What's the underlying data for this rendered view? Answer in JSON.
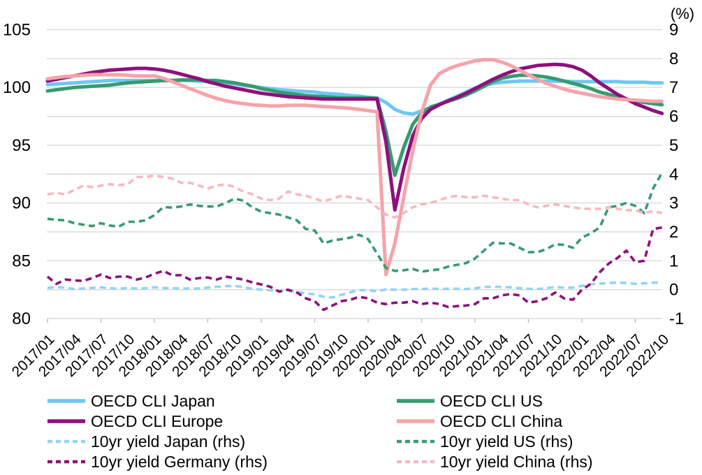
{
  "chart_data": {
    "type": "line",
    "title": "",
    "left_axis": {
      "range": [
        80,
        105
      ],
      "ticks": [
        105,
        100,
        95,
        90,
        85,
        80
      ],
      "label": ""
    },
    "right_axis": {
      "range": [
        -1,
        9
      ],
      "ticks": [
        9,
        8,
        7,
        6,
        5,
        4,
        3,
        2,
        1,
        0,
        -1
      ],
      "label": "(%)"
    },
    "grid": "horizontal",
    "legend_position": "bottom-two-columns",
    "x_label_every": 3,
    "x_tick_mark_every": 6,
    "x": [
      "2017/01",
      "2017/02",
      "2017/03",
      "2017/04",
      "2017/05",
      "2017/06",
      "2017/07",
      "2017/08",
      "2017/09",
      "2017/10",
      "2017/11",
      "2017/12",
      "2018/01",
      "2018/02",
      "2018/03",
      "2018/04",
      "2018/05",
      "2018/06",
      "2018/07",
      "2018/08",
      "2018/09",
      "2018/10",
      "2018/11",
      "2018/12",
      "2019/01",
      "2019/02",
      "2019/03",
      "2019/04",
      "2019/05",
      "2019/06",
      "2019/07",
      "2019/08",
      "2019/09",
      "2019/10",
      "2019/11",
      "2019/12",
      "2020/01",
      "2020/02",
      "2020/03",
      "2020/04",
      "2020/05",
      "2020/06",
      "2020/07",
      "2020/08",
      "2020/09",
      "2020/10",
      "2020/11",
      "2020/12",
      "2021/01",
      "2021/02",
      "2021/03",
      "2021/04",
      "2021/05",
      "2021/06",
      "2021/07",
      "2021/08",
      "2021/09",
      "2021/10",
      "2021/11",
      "2021/12",
      "2022/01",
      "2022/02",
      "2022/03",
      "2022/04",
      "2022/05",
      "2022/06",
      "2022/07",
      "2022/08",
      "2022/09",
      "2022/10"
    ],
    "series": [
      {
        "name": "OECD CLI Japan",
        "axis": "left",
        "dashed": false,
        "color": "#6FC7F0",
        "values": [
          100.25,
          100.3,
          100.35,
          100.4,
          100.45,
          100.5,
          100.55,
          100.6,
          100.6,
          100.6,
          100.6,
          100.6,
          100.6,
          100.6,
          100.6,
          100.6,
          100.6,
          100.55,
          100.5,
          100.45,
          100.4,
          100.3,
          100.2,
          100.1,
          100.0,
          99.9,
          99.8,
          99.75,
          99.7,
          99.65,
          99.6,
          99.5,
          99.45,
          99.4,
          99.3,
          99.25,
          99.15,
          99.1,
          98.7,
          98.1,
          97.8,
          97.7,
          97.95,
          98.25,
          98.55,
          98.9,
          99.25,
          99.6,
          99.95,
          100.2,
          100.35,
          100.45,
          100.5,
          100.55,
          100.55,
          100.55,
          100.55,
          100.55,
          100.55,
          100.5,
          100.5,
          100.5,
          100.5,
          100.5,
          100.5,
          100.45,
          100.45,
          100.45,
          100.4,
          100.4
        ]
      },
      {
        "name": "OECD CLI US",
        "axis": "left",
        "dashed": false,
        "color": "#369B71",
        "values": [
          99.7,
          99.8,
          99.9,
          100.0,
          100.05,
          100.1,
          100.15,
          100.2,
          100.3,
          100.4,
          100.45,
          100.5,
          100.55,
          100.6,
          100.6,
          100.65,
          100.65,
          100.65,
          100.6,
          100.6,
          100.5,
          100.4,
          100.25,
          100.1,
          99.9,
          99.75,
          99.6,
          99.5,
          99.4,
          99.3,
          99.25,
          99.2,
          99.15,
          99.1,
          99.1,
          99.1,
          99.1,
          99.05,
          96.2,
          92.4,
          94.8,
          96.8,
          97.8,
          98.3,
          98.55,
          98.8,
          99.05,
          99.35,
          99.7,
          100.1,
          100.5,
          100.8,
          100.95,
          101.05,
          101.05,
          101.0,
          100.9,
          100.75,
          100.55,
          100.35,
          100.15,
          99.9,
          99.6,
          99.4,
          99.2,
          99.0,
          98.8,
          98.7,
          98.6,
          98.5
        ]
      },
      {
        "name": "OECD CLI Europe",
        "axis": "left",
        "dashed": false,
        "color": "#8E107C",
        "values": [
          100.55,
          100.7,
          100.85,
          101.0,
          101.15,
          101.3,
          101.4,
          101.5,
          101.55,
          101.6,
          101.65,
          101.65,
          101.6,
          101.5,
          101.35,
          101.15,
          100.95,
          100.75,
          100.5,
          100.3,
          100.1,
          99.95,
          99.8,
          99.65,
          99.5,
          99.4,
          99.3,
          99.2,
          99.15,
          99.1,
          99.05,
          99.0,
          99.0,
          99.0,
          99.0,
          99.0,
          99.0,
          99.0,
          95.3,
          89.4,
          93.0,
          95.8,
          97.3,
          98.1,
          98.5,
          98.85,
          99.15,
          99.5,
          99.9,
          100.3,
          100.7,
          101.05,
          101.35,
          101.6,
          101.75,
          101.9,
          101.95,
          102.0,
          101.95,
          101.8,
          101.5,
          101.0,
          100.4,
          99.9,
          99.4,
          99.0,
          98.6,
          98.3,
          98.0,
          97.75
        ]
      },
      {
        "name": "OECD CLI China",
        "axis": "left",
        "dashed": false,
        "color": "#F5A3A9",
        "values": [
          100.75,
          100.85,
          100.95,
          101.0,
          101.05,
          101.1,
          101.1,
          101.1,
          101.1,
          101.05,
          101.0,
          101.0,
          101.0,
          100.8,
          100.5,
          100.2,
          99.9,
          99.6,
          99.3,
          99.05,
          98.85,
          98.7,
          98.6,
          98.5,
          98.45,
          98.4,
          98.4,
          98.45,
          98.45,
          98.45,
          98.4,
          98.35,
          98.3,
          98.25,
          98.2,
          98.1,
          98.0,
          97.9,
          83.8,
          86.5,
          90.5,
          94.5,
          97.8,
          100.2,
          101.2,
          101.6,
          101.9,
          102.1,
          102.3,
          102.4,
          102.4,
          102.2,
          101.9,
          101.5,
          101.1,
          100.7,
          100.35,
          100.1,
          99.85,
          99.65,
          99.5,
          99.35,
          99.2,
          99.1,
          99.0,
          98.95,
          98.9,
          98.85,
          98.8,
          98.8
        ]
      },
      {
        "name": "10yr yield Japan (rhs)",
        "axis": "right",
        "dashed": true,
        "color": "#92D4F4",
        "values": [
          0.06,
          0.08,
          0.07,
          0.02,
          0.04,
          0.06,
          0.08,
          0.05,
          0.03,
          0.06,
          0.04,
          0.05,
          0.08,
          0.06,
          0.05,
          0.04,
          0.04,
          0.04,
          0.07,
          0.1,
          0.12,
          0.13,
          0.09,
          0.03,
          0.0,
          -0.02,
          -0.05,
          -0.04,
          -0.07,
          -0.13,
          -0.16,
          -0.25,
          -0.27,
          -0.18,
          -0.09,
          -0.02,
          -0.02,
          -0.06,
          0.01,
          0.0,
          0.0,
          0.02,
          0.02,
          0.04,
          0.02,
          0.03,
          0.03,
          0.02,
          0.05,
          0.09,
          0.1,
          0.09,
          0.08,
          0.05,
          0.03,
          0.02,
          0.05,
          0.09,
          0.07,
          0.07,
          0.13,
          0.19,
          0.21,
          0.23,
          0.24,
          0.23,
          0.2,
          0.22,
          0.24,
          0.25
        ]
      },
      {
        "name": "10yr yield US (rhs)",
        "axis": "right",
        "dashed": true,
        "color": "#369B71",
        "values": [
          2.45,
          2.42,
          2.4,
          2.3,
          2.25,
          2.2,
          2.3,
          2.22,
          2.18,
          2.35,
          2.35,
          2.4,
          2.58,
          2.86,
          2.84,
          2.88,
          2.95,
          2.9,
          2.88,
          2.88,
          3.0,
          3.15,
          3.08,
          2.85,
          2.7,
          2.65,
          2.6,
          2.5,
          2.4,
          2.1,
          2.05,
          1.6,
          1.7,
          1.75,
          1.8,
          1.9,
          1.75,
          1.25,
          0.75,
          0.65,
          0.67,
          0.72,
          0.62,
          0.67,
          0.7,
          0.8,
          0.86,
          0.92,
          1.08,
          1.35,
          1.62,
          1.6,
          1.6,
          1.45,
          1.3,
          1.3,
          1.4,
          1.57,
          1.55,
          1.45,
          1.8,
          1.95,
          2.15,
          2.85,
          2.9,
          3.0,
          2.9,
          2.65,
          3.5,
          4.05
        ]
      },
      {
        "name": "10yr yield Germany (rhs)",
        "axis": "right",
        "dashed": true,
        "color": "#8E107C",
        "values": [
          0.45,
          0.2,
          0.35,
          0.32,
          0.3,
          0.4,
          0.52,
          0.4,
          0.45,
          0.45,
          0.35,
          0.42,
          0.55,
          0.65,
          0.5,
          0.5,
          0.35,
          0.4,
          0.42,
          0.35,
          0.45,
          0.4,
          0.35,
          0.25,
          0.18,
          0.1,
          -0.07,
          0.0,
          -0.1,
          -0.3,
          -0.4,
          -0.7,
          -0.55,
          -0.4,
          -0.35,
          -0.25,
          -0.3,
          -0.45,
          -0.5,
          -0.45,
          -0.45,
          -0.4,
          -0.5,
          -0.45,
          -0.5,
          -0.6,
          -0.57,
          -0.55,
          -0.5,
          -0.3,
          -0.3,
          -0.2,
          -0.15,
          -0.2,
          -0.45,
          -0.4,
          -0.3,
          -0.1,
          -0.3,
          -0.35,
          0.0,
          0.2,
          0.6,
          0.9,
          1.1,
          1.35,
          0.95,
          1.0,
          2.1,
          2.15
        ]
      },
      {
        "name": "10yr yield China (rhs)",
        "axis": "right",
        "dashed": true,
        "color": "#F8B8BE",
        "values": [
          3.3,
          3.35,
          3.3,
          3.45,
          3.6,
          3.55,
          3.6,
          3.65,
          3.62,
          3.65,
          3.9,
          3.9,
          3.95,
          3.9,
          3.85,
          3.7,
          3.7,
          3.6,
          3.5,
          3.6,
          3.65,
          3.55,
          3.4,
          3.3,
          3.15,
          3.1,
          3.15,
          3.4,
          3.3,
          3.25,
          3.15,
          3.05,
          3.15,
          3.25,
          3.2,
          3.15,
          3.1,
          2.85,
          2.6,
          2.5,
          2.65,
          2.85,
          2.95,
          3.0,
          3.1,
          3.2,
          3.25,
          3.2,
          3.2,
          3.25,
          3.2,
          3.15,
          3.1,
          3.1,
          2.95,
          2.85,
          2.9,
          2.95,
          2.9,
          2.85,
          2.8,
          2.8,
          2.8,
          2.85,
          2.8,
          2.75,
          2.75,
          2.65,
          2.72,
          2.65
        ]
      }
    ],
    "legend": {
      "columns": 2,
      "order": "row-major",
      "labels": [
        "OECD CLI Japan",
        "OECD CLI US",
        "OECD CLI Europe",
        "OECD CLI China",
        "10yr yield Japan (rhs)",
        "10yr yield US (rhs)",
        "10yr yield Germany (rhs)",
        "10yr yield China (rhs)"
      ]
    },
    "style": {
      "gridline_color": "#D9D9D9",
      "tick_color": "#BFBFBF",
      "solid_width": 5,
      "dashed_width": 3.6
    }
  }
}
